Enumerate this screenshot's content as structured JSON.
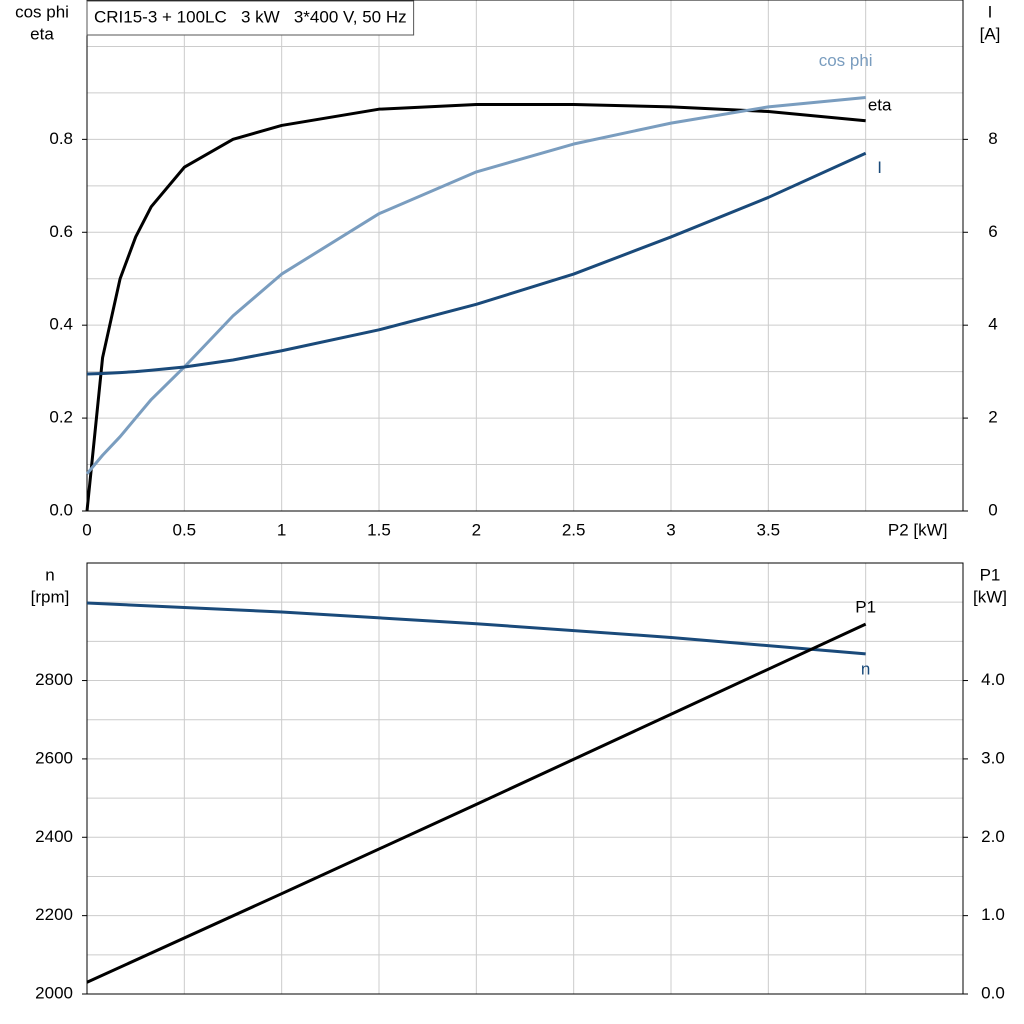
{
  "chart_data": [
    {
      "type": "line",
      "title": "CRI15-3 + 100LC   3 kW   3*400 V, 50 Hz",
      "ylabel": [
        "cos phi",
        "eta"
      ],
      "y2label": [
        "I",
        "[A]"
      ],
      "x": [
        0,
        0.08,
        0.17,
        0.25,
        0.33,
        0.5,
        0.75,
        1,
        1.5,
        2,
        2.5,
        3,
        3.5,
        4
      ],
      "xlim": [
        0,
        4.5
      ],
      "xticks": [
        0,
        0.5,
        1.0,
        1.5,
        2.0,
        2.5,
        3.0,
        3.5,
        {
          "value": 4,
          "label": "P2 [kW]"
        }
      ],
      "xgrid": [
        4.5
      ],
      "ylim": [
        0,
        1.1
      ],
      "yticks": [
        {
          "value": 0,
          "label": "0.0"
        },
        0.2,
        0.4,
        0.6,
        0.8
      ],
      "yminor": [
        0.1,
        0.3,
        0.5,
        0.7,
        0.9,
        1.0
      ],
      "y2lim": [
        0,
        11
      ],
      "y2ticks": [
        0,
        2,
        4,
        6,
        8
      ],
      "grid": true,
      "series": [
        {
          "name": "eta",
          "color": "#000000",
          "values": [
            0,
            0.33,
            0.5,
            0.59,
            0.655,
            0.74,
            0.8,
            0.83,
            0.865,
            0.875,
            0.875,
            0.87,
            0.86,
            0.84
          ]
        },
        {
          "name": "cos phi",
          "color": "#7a9dbf",
          "values": [
            0.08,
            0.12,
            0.16,
            0.2,
            0.24,
            0.31,
            0.42,
            0.51,
            0.64,
            0.73,
            0.79,
            0.835,
            0.87,
            0.89
          ]
        },
        {
          "name": "I",
          "color": "#1a4a7a",
          "axis": "y2",
          "values": [
            2.95,
            2.96,
            2.98,
            3.0,
            3.03,
            3.1,
            3.25,
            3.45,
            3.9,
            4.45,
            5.1,
            5.9,
            6.75,
            7.7
          ]
        }
      ]
    },
    {
      "type": "line",
      "ylabel": [
        "n",
        "[rpm]"
      ],
      "y2label": [
        "P1",
        "[kW]"
      ],
      "x": [
        0,
        1,
        2,
        3,
        4
      ],
      "xlim": [
        0,
        4.5
      ],
      "xgrid": [
        0.5,
        1.0,
        1.5,
        2.0,
        2.5,
        3.0,
        3.5,
        4.0,
        4.5
      ],
      "ylim": [
        2000,
        3100
      ],
      "yticks": [
        2000,
        2200,
        2400,
        2600,
        2800
      ],
      "yminor": [
        2100,
        2300,
        2500,
        2700,
        2900,
        3000
      ],
      "y2lim": [
        0,
        5.5
      ],
      "y2ticks": [
        {
          "value": 0,
          "label": "0.0"
        },
        {
          "value": 1,
          "label": "1.0"
        },
        {
          "value": 2,
          "label": "2.0"
        },
        {
          "value": 3,
          "label": "3.0"
        },
        {
          "value": 4,
          "label": "4.0"
        }
      ],
      "grid": true,
      "series": [
        {
          "name": "n",
          "color": "#1a4a7a",
          "values": [
            2998,
            2975,
            2945,
            2910,
            2868
          ]
        },
        {
          "name": "P1",
          "color": "#000000",
          "axis": "y2",
          "values": [
            0.15,
            1.28,
            2.42,
            3.57,
            4.72
          ]
        }
      ]
    }
  ]
}
